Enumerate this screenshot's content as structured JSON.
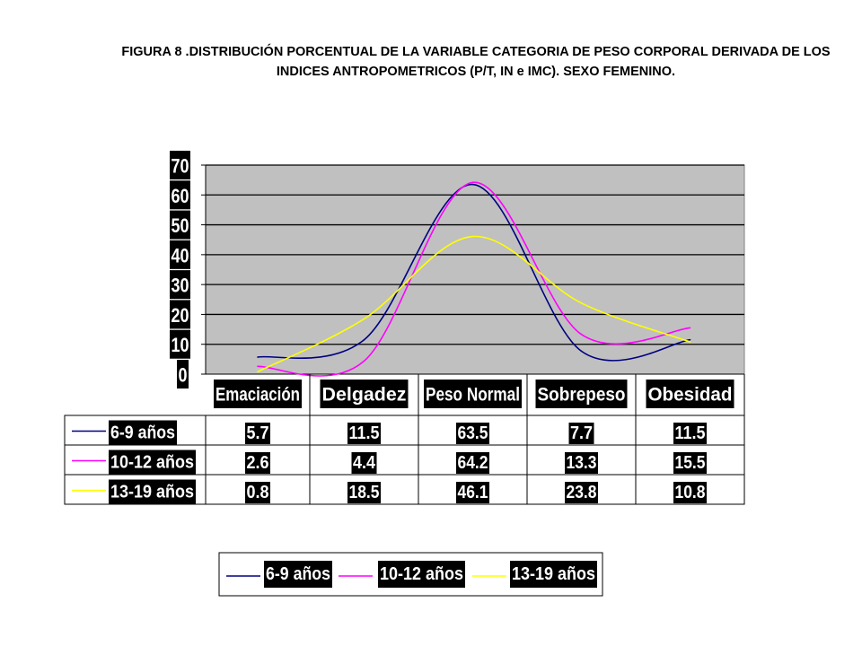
{
  "title_line1": "FIGURA 8 .DISTRIBUCIÓN PORCENTUAL DE LA VARIABLE  CATEGORIA DE PESO CORPORAL DERIVADA DE LOS",
  "title_line2": "INDICES ANTROPOMETRICOS (P/T, IN e IMC). SEXO FEMENINO.",
  "chart_data": {
    "type": "line",
    "categories": [
      "Emaciación",
      "Delgadez",
      "Peso Normal",
      "Sobrepeso",
      "Obesidad"
    ],
    "series": [
      {
        "name": "6-9 años",
        "values": [
          5.7,
          11.5,
          63.5,
          7.7,
          11.5
        ],
        "color": "#000080"
      },
      {
        "name": "10-12 años",
        "values": [
          2.6,
          4.4,
          64.2,
          13.3,
          15.5
        ],
        "color": "#ff00ff"
      },
      {
        "name": "13-19 años",
        "values": [
          0.8,
          18.5,
          46.1,
          23.8,
          10.8
        ],
        "color": "#ffff00"
      }
    ],
    "ylim": [
      0,
      70
    ],
    "yticks": [
      "0",
      "10",
      "20",
      "30",
      "40",
      "50",
      "60",
      "70"
    ],
    "grid": true,
    "plot_background": "#c0c0c0",
    "smooth": true,
    "data_table": true,
    "legend_position": "bottom"
  }
}
